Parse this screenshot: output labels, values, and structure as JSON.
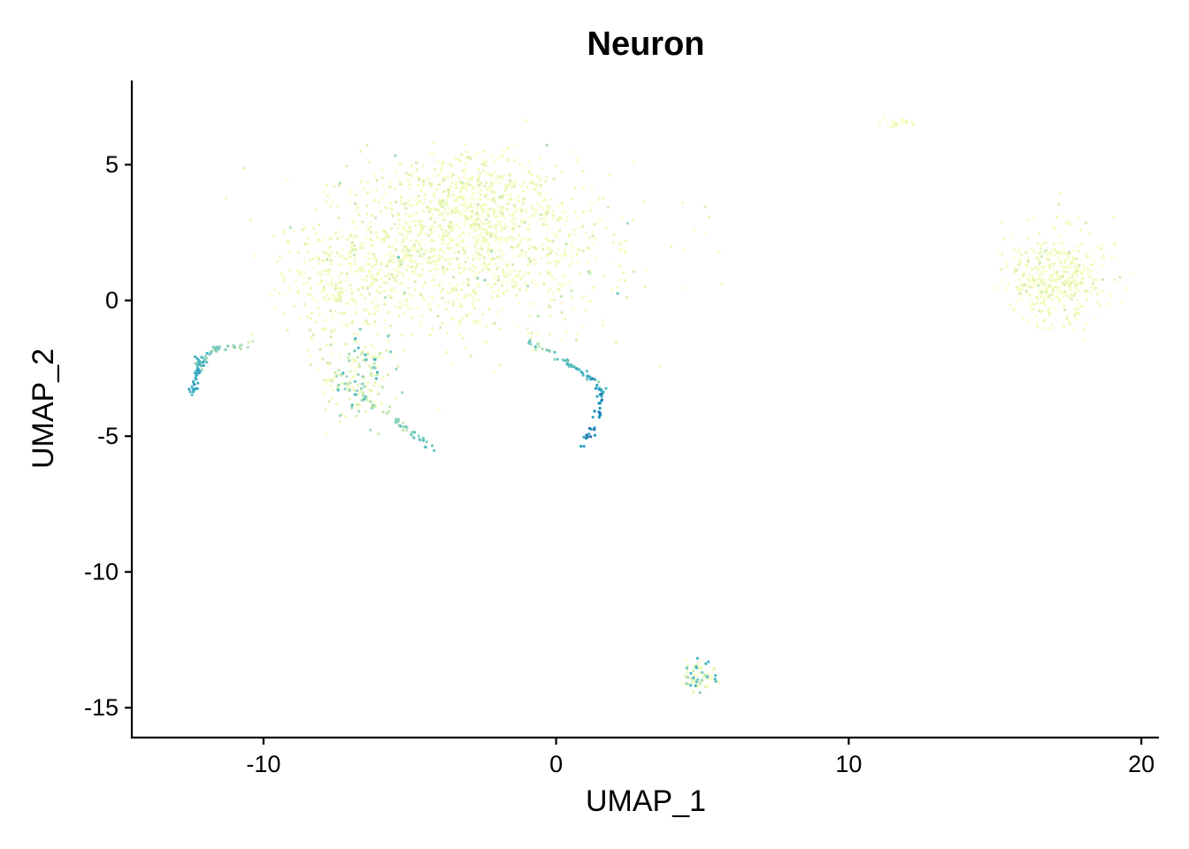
{
  "chart_data": {
    "type": "scatter",
    "title": "Neuron",
    "xlabel": "UMAP_1",
    "ylabel": "UMAP_2",
    "xlim": [
      -14.5,
      20.6
    ],
    "ylim": [
      -16.1,
      8.1
    ],
    "xticks": [
      -10,
      0,
      10,
      20
    ],
    "yticks": [
      5,
      0,
      -5,
      -10,
      -15
    ],
    "x_tick_labels": [
      "-10",
      "0",
      "10",
      "20"
    ],
    "y_tick_labels": [
      "5",
      "0",
      "-5",
      "-10",
      "-15"
    ],
    "grid": false,
    "legend": "none",
    "color_scale": [
      "#ffffd9",
      "#edf8b1",
      "#c7e9b4",
      "#7fcdbb",
      "#41b6c4",
      "#1d91c0",
      "#225ea8",
      "#0c2c84"
    ],
    "clusters": [
      {
        "label": "main cloud",
        "cx": -3.0,
        "cy": 2.0,
        "sx": 2.6,
        "sy": 1.5,
        "n": 1200,
        "expr": 0.12
      },
      {
        "label": "central upper lobe",
        "cx": -2.5,
        "cy": 3.8,
        "sx": 1.3,
        "sy": 0.8,
        "n": 300,
        "expr": 0.1
      },
      {
        "label": "left arm blob",
        "cx": -7.0,
        "cy": 0.5,
        "sx": 1.1,
        "sy": 1.2,
        "n": 250,
        "expr": 0.12
      },
      {
        "label": "lower-left blob",
        "cx": -6.8,
        "cy": -2.8,
        "sx": 0.6,
        "sy": 0.8,
        "n": 180,
        "expr": 0.25
      },
      {
        "label": "right cluster",
        "cx": 17.1,
        "cy": 0.8,
        "sx": 0.85,
        "sy": 0.8,
        "n": 420,
        "expr": 0.12
      },
      {
        "label": "bottom cluster",
        "cx": 4.9,
        "cy": -13.9,
        "sx": 0.28,
        "sy": 0.3,
        "n": 70,
        "expr": 0.3
      },
      {
        "label": "top-right cluster",
        "cx": 11.6,
        "cy": 6.55,
        "sx": 0.25,
        "sy": 0.1,
        "n": 25,
        "expr": 0.1
      }
    ],
    "trajectories": [
      {
        "label": "left trajectory",
        "points": [
          [
            -10.3,
            -1.6
          ],
          [
            -11.6,
            -1.8
          ],
          [
            -12.1,
            -2.1
          ],
          [
            -12.3,
            -2.6
          ],
          [
            -12.4,
            -3.5
          ]
        ],
        "n": 90,
        "expr": 0.6
      },
      {
        "label": "lower trajectory",
        "points": [
          [
            -6.5,
            -3.7
          ],
          [
            -5.5,
            -4.4
          ],
          [
            -4.8,
            -5.0
          ],
          [
            -4.1,
            -5.5
          ]
        ],
        "n": 45,
        "expr": 0.5
      },
      {
        "label": "right branch",
        "points": [
          [
            -1.0,
            -1.5
          ],
          [
            0.2,
            -2.2
          ],
          [
            1.1,
            -2.8
          ],
          [
            1.6,
            -3.4
          ],
          [
            1.4,
            -4.4
          ],
          [
            0.9,
            -5.3
          ]
        ],
        "n": 90,
        "expr": 0.75
      }
    ]
  }
}
